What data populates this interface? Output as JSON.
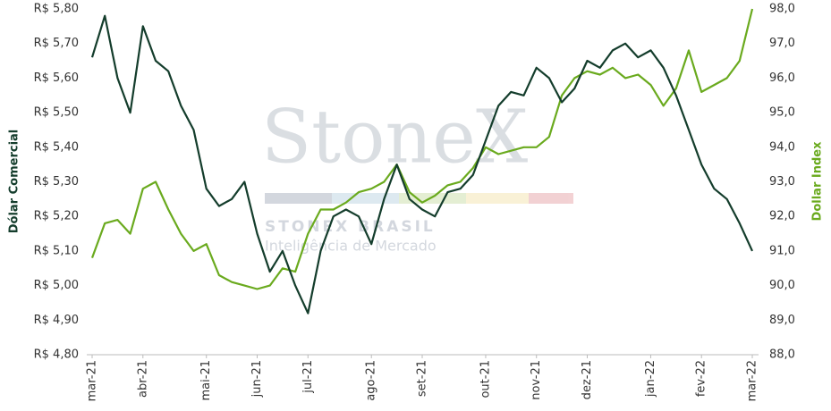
{
  "chart_data": {
    "type": "line",
    "categories": [
      "mar-21",
      null,
      null,
      null,
      "abr-21",
      null,
      null,
      null,
      null,
      "mai-21",
      null,
      null,
      null,
      "jun-21",
      null,
      null,
      null,
      "jul-21",
      null,
      null,
      null,
      null,
      "ago-21",
      null,
      null,
      null,
      "set-21",
      null,
      null,
      null,
      null,
      "out-21",
      null,
      null,
      null,
      "nov-21",
      null,
      null,
      null,
      "dez-21",
      null,
      null,
      null,
      null,
      "jan-22",
      null,
      null,
      null,
      "fev-22",
      null,
      null,
      null,
      "mar-22"
    ],
    "series": [
      {
        "name": "Dólar Comercial",
        "color": "#143d2c",
        "values": [
          5.66,
          5.78,
          5.6,
          5.5,
          5.75,
          5.65,
          5.62,
          5.52,
          5.45,
          5.28,
          5.23,
          5.25,
          5.3,
          5.15,
          5.04,
          5.1,
          5.0,
          4.92,
          5.1,
          5.2,
          5.22,
          5.2,
          5.12,
          5.25,
          5.35,
          5.25,
          5.22,
          5.2,
          5.27,
          5.28,
          5.32,
          5.42,
          5.52,
          5.56,
          5.55,
          5.63,
          5.6,
          5.53,
          5.57,
          5.65,
          5.63,
          5.68,
          5.7,
          5.66,
          5.68,
          5.63,
          5.55,
          5.45,
          5.35,
          5.28,
          5.25,
          5.18,
          5.1
        ]
      },
      {
        "name": "Dollar Index",
        "color": "#6aaa1e",
        "axis": "y2",
        "values": [
          90.8,
          91.8,
          91.9,
          91.5,
          92.8,
          93.0,
          92.2,
          91.5,
          91.0,
          91.2,
          90.3,
          90.1,
          90.0,
          89.9,
          90.0,
          90.5,
          90.4,
          91.5,
          92.2,
          92.2,
          92.4,
          92.7,
          92.8,
          93.0,
          93.5,
          92.7,
          92.4,
          92.6,
          92.9,
          93.0,
          93.4,
          94.0,
          93.8,
          93.9,
          94.0,
          94.0,
          94.3,
          95.5,
          96.0,
          96.2,
          96.1,
          96.3,
          96.0,
          96.1,
          95.8,
          95.2,
          95.7,
          96.8,
          95.6,
          95.8,
          96.0,
          96.5,
          98.0
        ]
      }
    ],
    "ylim": [
      4.8,
      5.8
    ],
    "yticks": [
      {
        "value": 4.8,
        "label": "R$ 4,80"
      },
      {
        "value": 4.9,
        "label": "R$ 4,90"
      },
      {
        "value": 5.0,
        "label": "R$ 5,00"
      },
      {
        "value": 5.1,
        "label": "R$ 5,10"
      },
      {
        "value": 5.2,
        "label": "R$ 5,20"
      },
      {
        "value": 5.3,
        "label": "R$ 5,30"
      },
      {
        "value": 5.4,
        "label": "R$ 5,40"
      },
      {
        "value": 5.5,
        "label": "R$ 5,50"
      },
      {
        "value": 5.6,
        "label": "R$ 5,60"
      },
      {
        "value": 5.7,
        "label": "R$ 5,70"
      },
      {
        "value": 5.8,
        "label": "R$ 5,80"
      }
    ],
    "y2lim": [
      88,
      98
    ],
    "y2ticks": [
      {
        "value": 88,
        "label": "88,0"
      },
      {
        "value": 89,
        "label": "89,0"
      },
      {
        "value": 90,
        "label": "90,0"
      },
      {
        "value": 91,
        "label": "91,0"
      },
      {
        "value": 92,
        "label": "92,0"
      },
      {
        "value": 93,
        "label": "93,0"
      },
      {
        "value": 94,
        "label": "94,0"
      },
      {
        "value": 95,
        "label": "95,0"
      },
      {
        "value": 96,
        "label": "96,0"
      },
      {
        "value": 97,
        "label": "97,0"
      },
      {
        "value": 98,
        "label": "98,0"
      }
    ],
    "watermark": {
      "logo": "StoneX",
      "line1": "STONEX BRASIL",
      "line2": "Inteligência de Mercado"
    }
  }
}
